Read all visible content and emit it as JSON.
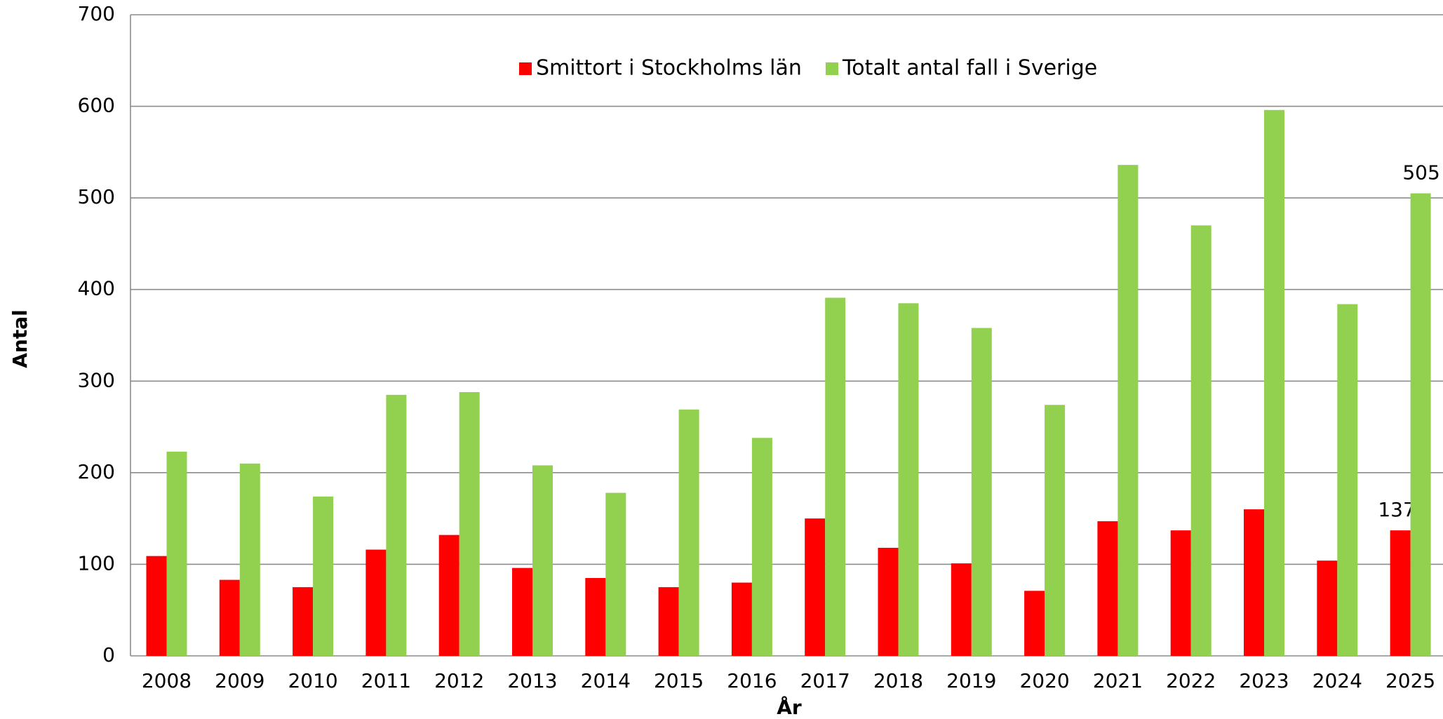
{
  "chart_data": {
    "type": "bar",
    "x_label": "År",
    "y_label": "Antal",
    "categories": [
      "2008",
      "2009",
      "2010",
      "2011",
      "2012",
      "2013",
      "2014",
      "2015",
      "2016",
      "2017",
      "2018",
      "2019",
      "2020",
      "2021",
      "2022",
      "2023",
      "2024",
      "2025"
    ],
    "series": [
      {
        "name": "Smittort i Stockholms län",
        "color": "#ff0000",
        "values": [
          109,
          83,
          75,
          116,
          132,
          96,
          85,
          75,
          80,
          150,
          118,
          101,
          71,
          147,
          137,
          160,
          104,
          137
        ],
        "value_labels": [
          null,
          null,
          null,
          null,
          null,
          null,
          null,
          null,
          null,
          null,
          null,
          null,
          null,
          null,
          null,
          null,
          null,
          "137"
        ]
      },
      {
        "name": "Totalt antal fall i Sverige",
        "color": "#92d050",
        "values": [
          223,
          210,
          174,
          285,
          288,
          208,
          178,
          269,
          238,
          391,
          385,
          358,
          274,
          536,
          470,
          596,
          384,
          505
        ],
        "value_labels": [
          null,
          null,
          null,
          null,
          null,
          null,
          null,
          null,
          null,
          null,
          null,
          null,
          null,
          null,
          null,
          null,
          null,
          "505"
        ]
      }
    ],
    "ylim": [
      0,
      700
    ],
    "yticks": [
      0,
      100,
      200,
      300,
      400,
      500,
      600,
      700
    ],
    "grid": true,
    "legend": "top"
  }
}
